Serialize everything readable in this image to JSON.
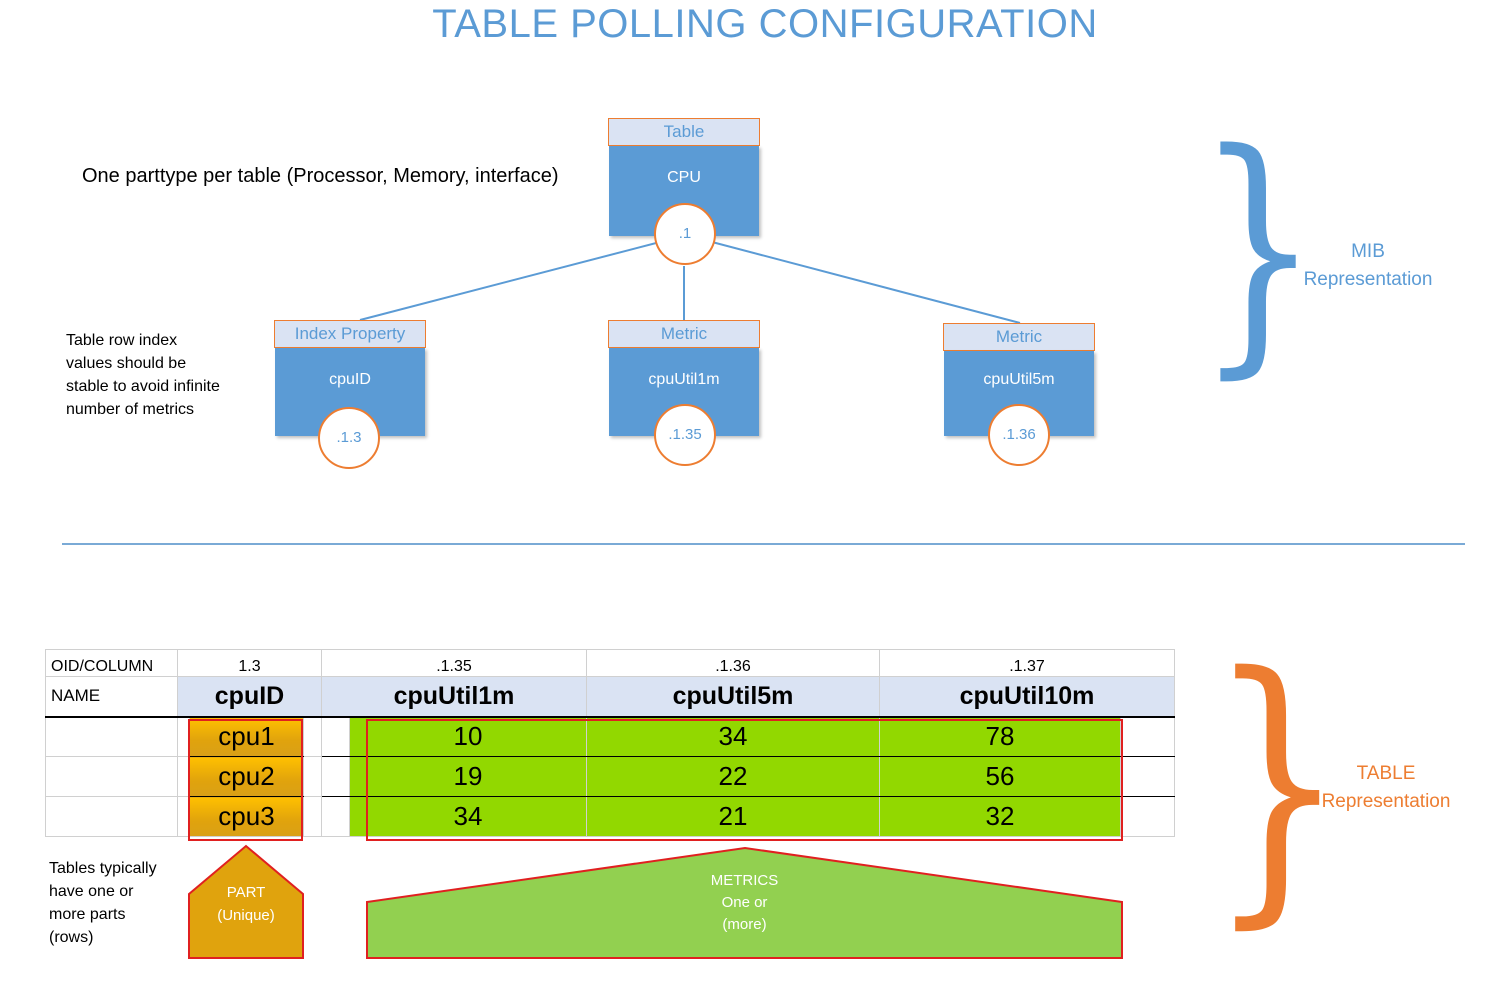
{
  "title": "TABLE POLLING CONFIGURATION",
  "notes": {
    "parttype": "One parttype per table (Processor, Memory, interface)",
    "row_index": [
      "Table row index",
      "values should be",
      "stable to avoid infinite",
      "number of metrics"
    ],
    "tables_parts": [
      "Tables typically",
      "have one or",
      "more parts",
      "(rows)"
    ]
  },
  "mib": {
    "root": {
      "label": "Table",
      "name": "CPU",
      "oid": ".1"
    },
    "children": [
      {
        "label": "Index Property",
        "name": "cpuID",
        "oid": ".1.3"
      },
      {
        "label": "Metric",
        "name": "cpuUtil1m",
        "oid": ".1.35"
      },
      {
        "label": "Metric",
        "name": "cpuUtil5m",
        "oid": ".1.36"
      }
    ],
    "side_label": [
      "MIB",
      "Representation"
    ]
  },
  "table": {
    "oid_header": "OID/COLUMN",
    "name_header": "NAME",
    "oids": [
      "1.3",
      ".1.35",
      ".1.36",
      ".1.37"
    ],
    "names": [
      "cpuID",
      "cpuUtil1m",
      "cpuUtil5m",
      "cpuUtil10m"
    ],
    "rows": [
      {
        "part": "cpu1",
        "values": [
          "10",
          "34",
          "78"
        ]
      },
      {
        "part": "cpu2",
        "values": [
          "19",
          "22",
          "56"
        ]
      },
      {
        "part": "cpu3",
        "values": [
          "34",
          "21",
          "32"
        ]
      }
    ],
    "side_label": [
      "TABLE",
      "Representation"
    ]
  },
  "callouts": {
    "part": [
      "PART",
      "(Unique)"
    ],
    "metrics": [
      "METRICS",
      "One or",
      "(more)"
    ]
  },
  "colors": {
    "accent_blue": "#5b9bd5",
    "accent_orange": "#ed7d31",
    "part_gold": "#ffc000",
    "metric_green": "#92d800",
    "outline_red": "#e02020"
  }
}
